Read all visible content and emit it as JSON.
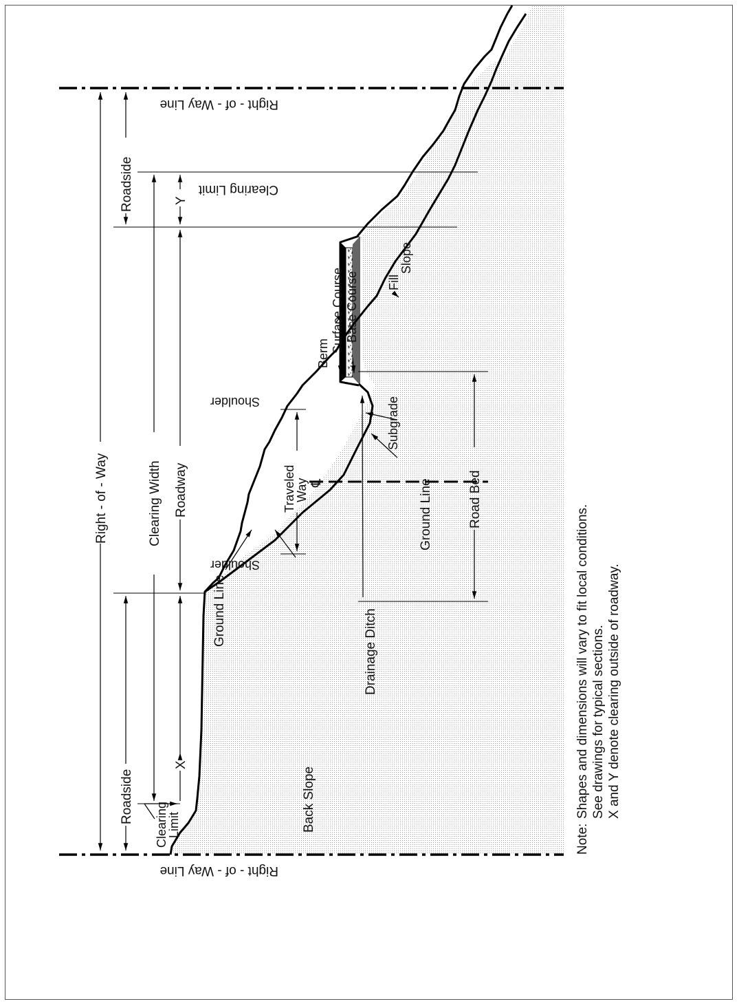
{
  "labels": {
    "right_of_way_line": "Right - of - Way Line",
    "right_of_way": "Right - of - Way",
    "roadside": "Roadside",
    "clearing_width": "Clearing Width",
    "roadway": "Roadway",
    "clearing_limit": "Clearing Limit",
    "clearing": "Clearing",
    "limit": "Limit",
    "x": "X",
    "y": "Y",
    "ground_line": "Ground Line",
    "back_slope": "Back Slope",
    "drainage_ditch": "Drainage Ditch",
    "shoulder": "Shoulder",
    "traveled": "Traveled",
    "way": "Way",
    "centerline": "℄",
    "subgrade": "Subgrade",
    "road_bed": "Road Bed",
    "berm": "Berm",
    "surface_course": "Surface Course",
    "base_course": "Base Course",
    "fill": "Fill",
    "slope": "Slope"
  },
  "note": {
    "label": "Note:",
    "lines": [
      "Shapes and dimensions will vary to fit local conditions.",
      "See drawings for typical sections.",
      "X and Y denote clearing outside of roadway."
    ]
  }
}
